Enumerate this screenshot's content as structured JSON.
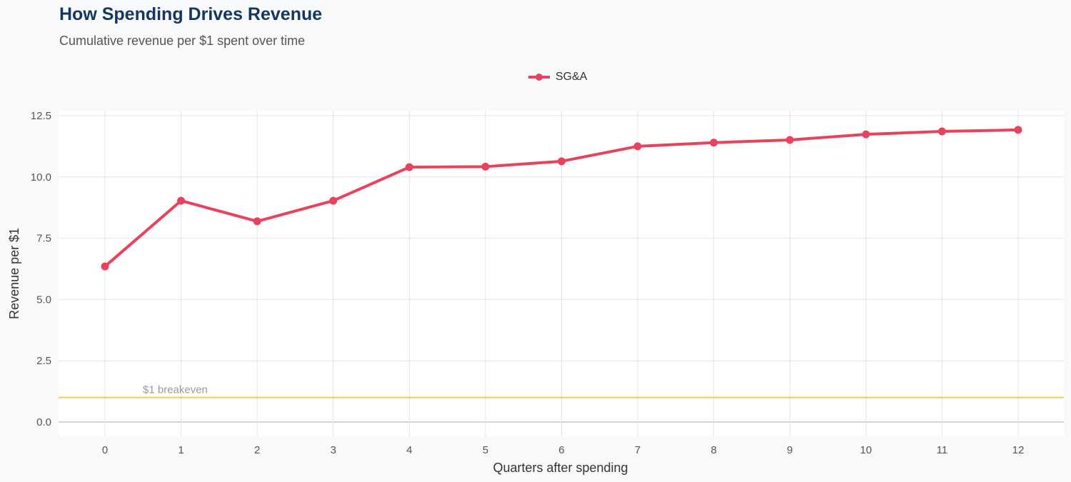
{
  "chart_data": {
    "type": "line",
    "title": "How Spending Drives Revenue",
    "subtitle": "Cumulative revenue per $1 spent over time",
    "xlabel": "Quarters after spending",
    "ylabel": "Revenue per $1",
    "x": [
      0,
      1,
      2,
      3,
      4,
      5,
      6,
      7,
      8,
      9,
      10,
      11,
      12
    ],
    "series": [
      {
        "name": "SG&A",
        "color": "#e8435e",
        "values": [
          6.35,
          9.03,
          8.19,
          9.03,
          10.4,
          10.42,
          10.64,
          11.25,
          11.4,
          11.51,
          11.74,
          11.86,
          11.92
        ]
      }
    ],
    "xlim": [
      -0.6,
      12.6
    ],
    "ylim": [
      -0.6,
      12.5
    ],
    "xticks": [
      "0",
      "1",
      "2",
      "3",
      "4",
      "5",
      "6",
      "7",
      "8",
      "9",
      "10",
      "11",
      "12"
    ],
    "yticks": [
      "0.0",
      "2.5",
      "5.0",
      "7.5",
      "10.0",
      "12.5"
    ],
    "reference_line": {
      "y": 1.0,
      "label": "$1 breakeven",
      "color": "#f5c75a"
    },
    "grid": true,
    "legend_position": "top"
  }
}
